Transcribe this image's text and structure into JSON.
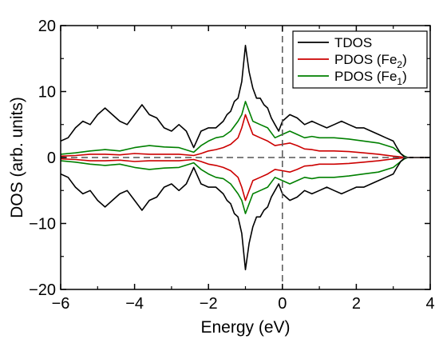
{
  "chart_data": {
    "type": "line",
    "title": "",
    "xlabel": "Energy (eV)",
    "ylabel": "DOS (arb. units)",
    "xlim": [
      -6,
      4
    ],
    "ylim": [
      -20,
      20
    ],
    "xticks": [
      "−6",
      "−4",
      "−2",
      "0",
      "2",
      "4"
    ],
    "yticks": [
      "20",
      "10",
      "0",
      "−10",
      "−20"
    ],
    "xtick_values": [
      -6,
      -4,
      -2,
      0,
      2,
      4
    ],
    "ytick_values": [
      20,
      10,
      0,
      -10,
      -20
    ],
    "fermi_level": 0,
    "zero_line": 0,
    "legend_position": "top-right",
    "legend": [
      {
        "series": "TDOS",
        "text": "TDOS",
        "sub": "",
        "tail": ""
      },
      {
        "series": "PDOS (Fe2)",
        "text": "PDOS (Fe",
        "sub": "2",
        "tail": ")"
      },
      {
        "series": "PDOS (Fe1)",
        "text": "PDOS (Fe",
        "sub": "1",
        "tail": ")"
      }
    ],
    "colors": {
      "TDOS": "#000000",
      "PDOS (Fe2)": "#cc0000",
      "PDOS (Fe1)": "#008000"
    },
    "spin_mirrored": true,
    "series": [
      {
        "name": "TDOS",
        "x": [
          -6.0,
          -5.8,
          -5.6,
          -5.4,
          -5.2,
          -5.0,
          -4.8,
          -4.6,
          -4.4,
          -4.2,
          -4.0,
          -3.8,
          -3.6,
          -3.4,
          -3.2,
          -3.0,
          -2.8,
          -2.6,
          -2.4,
          -2.2,
          -2.0,
          -1.8,
          -1.6,
          -1.5,
          -1.4,
          -1.3,
          -1.2,
          -1.1,
          -1.0,
          -0.9,
          -0.8,
          -0.7,
          -0.6,
          -0.5,
          -0.4,
          -0.3,
          -0.2,
          -0.1,
          0.0,
          0.2,
          0.4,
          0.6,
          0.8,
          1.0,
          1.2,
          1.4,
          1.6,
          1.8,
          2.0,
          2.2,
          2.4,
          2.6,
          2.8,
          3.0,
          3.1,
          3.2,
          3.3,
          3.4,
          3.6,
          3.8,
          4.0
        ],
        "values": [
          2.5,
          3.0,
          4.5,
          5.5,
          5.0,
          6.5,
          7.5,
          6.5,
          5.5,
          5.0,
          6.5,
          8.0,
          6.5,
          6.0,
          4.5,
          4.0,
          5.0,
          4.0,
          1.5,
          4.0,
          4.5,
          4.5,
          5.5,
          6.5,
          7.0,
          8.5,
          9.0,
          11.5,
          17.0,
          13.0,
          10.5,
          9.0,
          9.0,
          8.0,
          7.5,
          6.0,
          5.0,
          4.0,
          5.5,
          6.5,
          6.0,
          5.0,
          5.5,
          5.0,
          4.5,
          5.0,
          5.5,
          5.0,
          4.5,
          4.5,
          4.0,
          3.5,
          3.0,
          2.5,
          1.5,
          0.6,
          0.1,
          0.0,
          0.0,
          0.0,
          0.0
        ]
      },
      {
        "name": "PDOS (Fe2)",
        "x": [
          -6.0,
          -5.6,
          -5.2,
          -4.8,
          -4.4,
          -4.0,
          -3.6,
          -3.2,
          -2.8,
          -2.4,
          -2.2,
          -2.0,
          -1.8,
          -1.6,
          -1.4,
          -1.2,
          -1.1,
          -1.0,
          -0.9,
          -0.8,
          -0.6,
          -0.4,
          -0.2,
          0.0,
          0.2,
          0.4,
          0.6,
          0.8,
          1.0,
          1.4,
          1.8,
          2.2,
          2.6,
          3.0,
          3.2,
          3.3,
          3.4,
          3.6,
          4.0
        ],
        "values": [
          0.2,
          0.3,
          0.5,
          0.5,
          0.4,
          0.6,
          0.5,
          0.5,
          0.5,
          0.3,
          0.6,
          1.0,
          1.2,
          1.5,
          2.0,
          3.0,
          4.5,
          6.5,
          5.0,
          3.5,
          3.0,
          2.5,
          1.8,
          2.0,
          2.2,
          1.8,
          1.3,
          1.2,
          1.0,
          1.0,
          0.9,
          0.7,
          0.5,
          0.2,
          0.1,
          0.0,
          0.0,
          0.0,
          0.0
        ]
      },
      {
        "name": "PDOS (Fe1)",
        "x": [
          -6.0,
          -5.6,
          -5.2,
          -4.8,
          -4.4,
          -4.0,
          -3.6,
          -3.2,
          -2.8,
          -2.4,
          -2.2,
          -2.0,
          -1.8,
          -1.6,
          -1.4,
          -1.2,
          -1.1,
          -1.0,
          -0.9,
          -0.8,
          -0.6,
          -0.4,
          -0.2,
          0.0,
          0.2,
          0.4,
          0.6,
          0.8,
          1.0,
          1.4,
          1.8,
          2.2,
          2.6,
          3.0,
          3.2,
          3.3,
          3.4,
          3.6,
          4.0
        ],
        "values": [
          0.5,
          0.7,
          1.0,
          1.2,
          1.0,
          1.5,
          1.8,
          1.6,
          1.5,
          0.8,
          1.8,
          2.5,
          3.0,
          3.2,
          4.0,
          5.5,
          6.5,
          8.5,
          7.0,
          5.5,
          5.0,
          4.5,
          3.0,
          3.5,
          4.0,
          3.5,
          3.0,
          3.2,
          3.0,
          3.0,
          2.8,
          2.5,
          2.2,
          1.5,
          0.6,
          0.2,
          0.0,
          0.0,
          0.0
        ]
      }
    ]
  }
}
